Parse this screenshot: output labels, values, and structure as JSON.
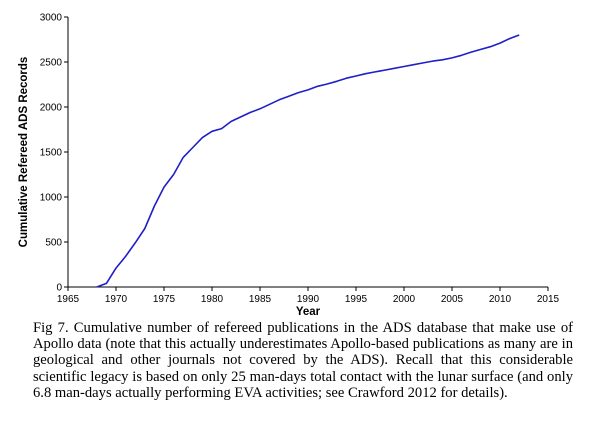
{
  "chart_data": {
    "type": "line",
    "title": "",
    "xlabel": "Year",
    "ylabel": "Cumulative Refereed ADS Records",
    "xlim": [
      1965,
      2015
    ],
    "ylim": [
      0,
      3000
    ],
    "x_ticks": [
      "1965",
      "1970",
      "1975",
      "1980",
      "1985",
      "1990",
      "1995",
      "2000",
      "2005",
      "2010",
      "2015"
    ],
    "y_ticks": [
      "0",
      "500",
      "1000",
      "1500",
      "2000",
      "2500",
      "3000"
    ],
    "grid": false,
    "legend": "none",
    "series": [
      {
        "color": "#1f1fc8",
        "x": [
          1968,
          1969,
          1970,
          1971,
          1972,
          1973,
          1974,
          1975,
          1976,
          1977,
          1978,
          1979,
          1980,
          1981,
          1982,
          1983,
          1984,
          1985,
          1986,
          1987,
          1988,
          1989,
          1990,
          1991,
          1992,
          1993,
          1994,
          1995,
          1996,
          1997,
          1998,
          1999,
          2000,
          2001,
          2002,
          2003,
          2004,
          2005,
          2006,
          2007,
          2008,
          2009,
          2010,
          2011,
          2012
        ],
        "y": [
          0,
          40,
          210,
          340,
          490,
          650,
          900,
          1110,
          1250,
          1440,
          1550,
          1660,
          1730,
          1760,
          1840,
          1890,
          1940,
          1980,
          2030,
          2080,
          2120,
          2160,
          2190,
          2230,
          2255,
          2285,
          2320,
          2345,
          2370,
          2390,
          2410,
          2430,
          2450,
          2470,
          2490,
          2510,
          2525,
          2545,
          2575,
          2610,
          2640,
          2670,
          2710,
          2760,
          2800
        ]
      }
    ]
  },
  "caption": {
    "text": "Fig 7. Cumulative number of refereed publications in the ADS database that make use of Apollo data (note that this actually underestimates Apollo-based publications as many are in geological and other journals not covered by the ADS). Recall that this considerable scientific legacy is based on only 25 man-days total contact with the lunar surface (and only 6.8 man-days actually performing EVA activities; see Crawford 2012 for details)."
  }
}
